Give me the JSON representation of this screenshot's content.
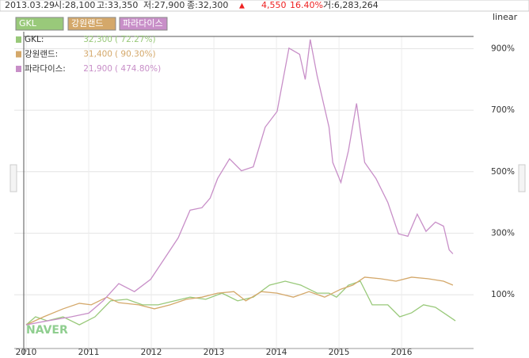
{
  "info": {
    "date": "2013.03.29",
    "open": "시:28,100",
    "high": "고:33,350",
    "low": "저:27,900",
    "close": "종:32,300",
    "arrow": "▲",
    "change": "4,550",
    "change_pct": "16.40%",
    "volume": "거:6,283,264"
  },
  "scale_mode": "linear",
  "watermark": "NAVER",
  "legend_rows": [
    {
      "name": "GKL:",
      "price": "32,300",
      "pct": "(  72.27%)"
    },
    {
      "name": "강원랜드:",
      "price": "31,400",
      "pct": "(  90.30%)"
    },
    {
      "name": "파라다이스:",
      "price": "21,900",
      "pct": "( 474.80%)"
    }
  ],
  "chart_data": {
    "type": "line",
    "xlim": [
      2009.81,
      2017.15
    ],
    "xticks": [
      2010,
      2011,
      2012,
      2013,
      2014,
      2015,
      2016
    ],
    "ylim": [
      -75,
      940
    ],
    "yticks": [
      {
        "value": 100,
        "label": "100%"
      },
      {
        "value": 300,
        "label": "300%"
      },
      {
        "value": 500,
        "label": "500%"
      },
      {
        "value": 700,
        "label": "700%"
      },
      {
        "value": 900,
        "label": "900%"
      }
    ],
    "grid": true,
    "series": [
      {
        "name": "GKL",
        "color": "#99c97a",
        "x": [
          2010.0,
          2010.15,
          2010.34,
          2010.59,
          2010.85,
          2011.1,
          2011.35,
          2011.61,
          2011.86,
          2012.11,
          2012.37,
          2012.62,
          2012.87,
          2013.13,
          2013.38,
          2013.63,
          2013.89,
          2014.14,
          2014.39,
          2014.65,
          2014.84,
          2014.96,
          2015.15,
          2015.34,
          2015.53,
          2015.78,
          2015.97,
          2016.16,
          2016.35,
          2016.54,
          2016.73,
          2016.86
        ],
        "values": [
          2,
          28,
          15,
          28,
          2,
          28,
          80,
          85,
          67,
          67,
          80,
          92,
          85,
          105,
          80,
          92,
          131,
          144,
          131,
          105,
          105,
          92,
          131,
          144,
          67,
          67,
          28,
          41,
          67,
          59,
          33,
          15
        ]
      },
      {
        "name": "강원랜드",
        "color": "#d4a86a",
        "x": [
          2010.0,
          2010.28,
          2010.59,
          2010.85,
          2011.04,
          2011.29,
          2011.48,
          2011.8,
          2012.05,
          2012.3,
          2012.56,
          2012.81,
          2013.06,
          2013.32,
          2013.51,
          2013.76,
          2014.01,
          2014.27,
          2014.52,
          2014.77,
          2015.03,
          2015.22,
          2015.41,
          2015.66,
          2015.91,
          2016.16,
          2016.42,
          2016.67,
          2016.82
        ],
        "values": [
          2,
          28,
          54,
          72,
          67,
          92,
          74,
          67,
          54,
          67,
          85,
          92,
          105,
          110,
          80,
          110,
          105,
          92,
          110,
          92,
          118,
          131,
          157,
          152,
          144,
          157,
          152,
          144,
          131
        ]
      },
      {
        "name": "파라다이스",
        "color": "#c88fc8",
        "x": [
          2010.0,
          2010.34,
          2010.72,
          2011.0,
          2011.23,
          2011.48,
          2011.73,
          2011.99,
          2012.18,
          2012.43,
          2012.62,
          2012.81,
          2012.94,
          2013.06,
          2013.25,
          2013.44,
          2013.63,
          2013.82,
          2014.01,
          2014.2,
          2014.37,
          2014.46,
          2014.54,
          2014.65,
          2014.84,
          2014.9,
          2015.03,
          2015.15,
          2015.28,
          2015.41,
          2015.59,
          2015.78,
          2015.95,
          2016.1,
          2016.25,
          2016.39,
          2016.54,
          2016.67,
          2016.76,
          2016.82
        ],
        "values": [
          2,
          15,
          28,
          40,
          80,
          136,
          110,
          150,
          208,
          285,
          375,
          383,
          414,
          478,
          542,
          503,
          516,
          645,
          696,
          902,
          882,
          800,
          930,
          812,
          645,
          530,
          465,
          568,
          722,
          530,
          478,
          400,
          298,
          290,
          362,
          306,
          336,
          323,
          246,
          233
        ]
      }
    ]
  }
}
